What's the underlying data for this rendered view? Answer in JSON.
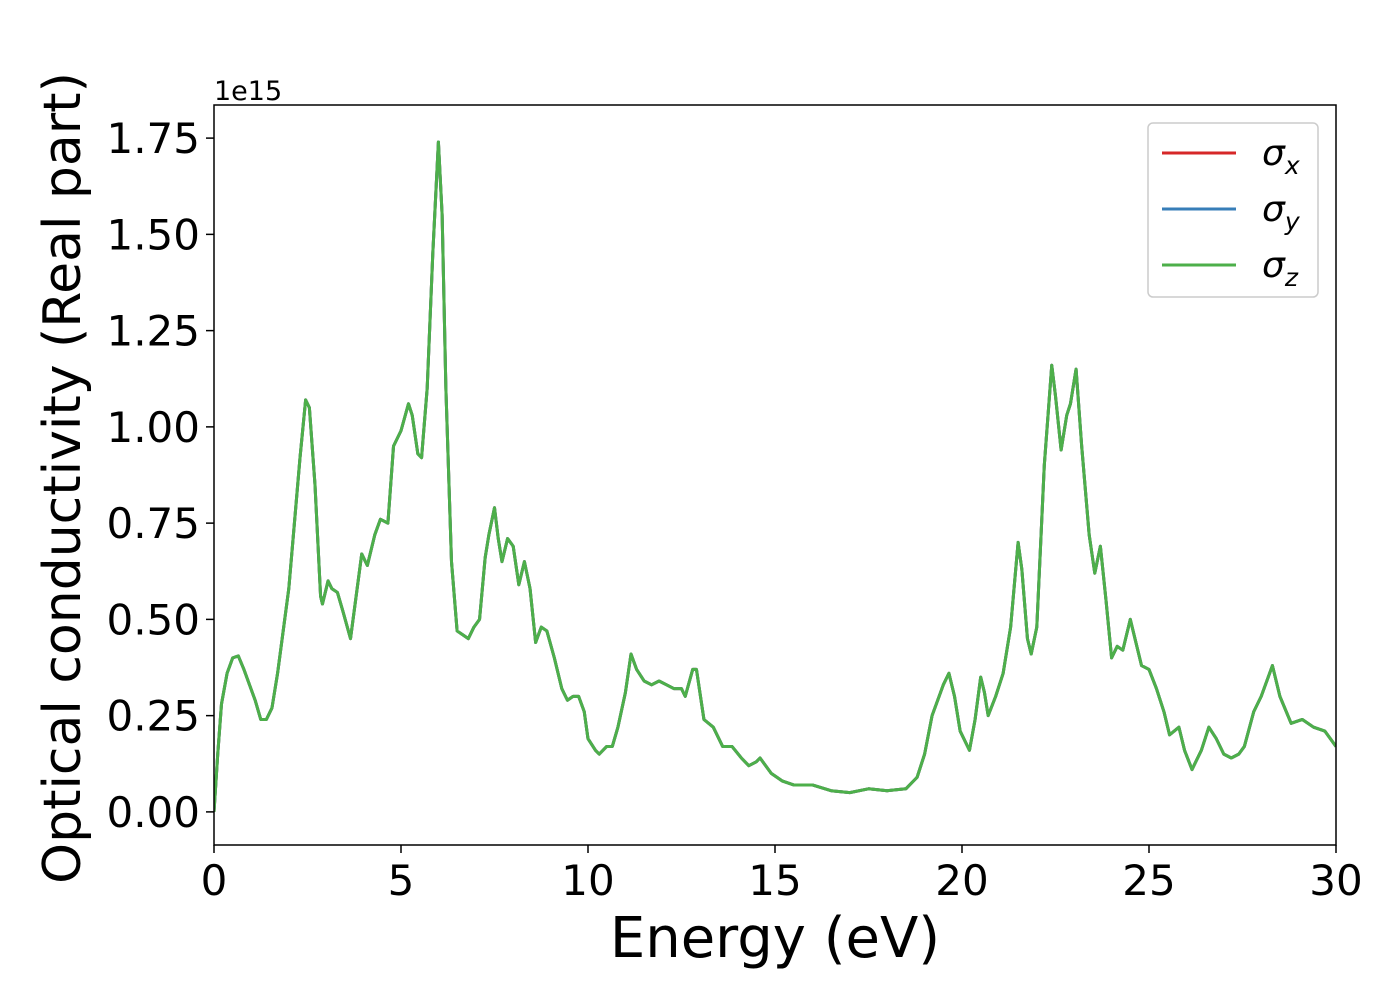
{
  "chart_data": {
    "type": "line",
    "xlabel": "Energy (eV)",
    "ylabel": "Optical conductivity (Real part)",
    "y_offset_label": "1e15",
    "xlim": [
      0,
      30
    ],
    "ylim": [
      -0.086,
      1.836
    ],
    "xticks": [
      0,
      5,
      10,
      15,
      20,
      25,
      30
    ],
    "yticks": [
      {
        "value": 0,
        "label": "0.00"
      },
      0.25,
      {
        "value": 0.5,
        "label": "0.50"
      },
      0.75,
      {
        "value": 1,
        "label": "1.00"
      },
      1.25,
      {
        "value": 1.5,
        "label": "1.50"
      },
      1.75
    ],
    "grid": false,
    "legend": "upper right",
    "x": [
      0,
      0.1,
      0.2,
      0.35,
      0.5,
      0.65,
      0.8,
      0.95,
      1.1,
      1.25,
      1.4,
      1.55,
      1.7,
      1.85,
      2.0,
      2.15,
      2.3,
      2.45,
      2.55,
      2.7,
      2.85,
      2.9,
      3.05,
      3.15,
      3.3,
      3.45,
      3.65,
      3.8,
      3.95,
      4.1,
      4.3,
      4.45,
      4.65,
      4.8,
      5.0,
      5.2,
      5.3,
      5.45,
      5.55,
      5.7,
      5.85,
      6.0,
      6.1,
      6.2,
      6.35,
      6.5,
      6.65,
      6.8,
      6.95,
      7.1,
      7.25,
      7.35,
      7.5,
      7.6,
      7.7,
      7.85,
      8.0,
      8.15,
      8.3,
      8.45,
      8.6,
      8.75,
      8.9,
      9.1,
      9.3,
      9.45,
      9.6,
      9.75,
      9.9,
      10.0,
      10.2,
      10.3,
      10.5,
      10.65,
      10.8,
      11.0,
      11.15,
      11.3,
      11.5,
      11.7,
      11.9,
      12.1,
      12.3,
      12.5,
      12.6,
      12.8,
      12.9,
      13.1,
      13.35,
      13.6,
      13.85,
      14.1,
      14.3,
      14.5,
      14.6,
      14.9,
      15.2,
      15.5,
      16.0,
      16.5,
      17.0,
      17.5,
      18.0,
      18.5,
      18.8,
      19.0,
      19.2,
      19.5,
      19.65,
      19.8,
      19.95,
      20.2,
      20.35,
      20.5,
      20.6,
      20.7,
      20.9,
      21.1,
      21.3,
      21.5,
      21.6,
      21.75,
      21.85,
      22.0,
      22.2,
      22.4,
      22.5,
      22.65,
      22.8,
      22.9,
      23.05,
      23.2,
      23.4,
      23.55,
      23.7,
      23.85,
      24.0,
      24.15,
      24.3,
      24.5,
      24.65,
      24.8,
      25.0,
      25.2,
      25.4,
      25.55,
      25.8,
      25.95,
      26.15,
      26.4,
      26.6,
      26.8,
      27.0,
      27.2,
      27.4,
      27.55,
      27.8,
      28.0,
      28.3,
      28.5,
      28.8,
      29.1,
      29.4,
      29.7,
      30.0
    ],
    "series": [
      {
        "name": "σx",
        "color": "#d62728",
        "values": [
          0,
          0.15,
          0.28,
          0.36,
          0.4,
          0.405,
          0.37,
          0.33,
          0.29,
          0.24,
          0.24,
          0.27,
          0.36,
          0.47,
          0.58,
          0.75,
          0.92,
          1.07,
          1.05,
          0.85,
          0.56,
          0.54,
          0.6,
          0.58,
          0.57,
          0.52,
          0.45,
          0.56,
          0.67,
          0.64,
          0.72,
          0.76,
          0.75,
          0.95,
          0.99,
          1.06,
          1.03,
          0.93,
          0.92,
          1.1,
          1.45,
          1.74,
          1.55,
          1.1,
          0.65,
          0.47,
          0.46,
          0.45,
          0.48,
          0.5,
          0.66,
          0.72,
          0.79,
          0.71,
          0.65,
          0.71,
          0.69,
          0.59,
          0.65,
          0.58,
          0.44,
          0.48,
          0.47,
          0.4,
          0.32,
          0.29,
          0.3,
          0.3,
          0.26,
          0.19,
          0.16,
          0.15,
          0.17,
          0.17,
          0.22,
          0.31,
          0.41,
          0.37,
          0.34,
          0.33,
          0.34,
          0.33,
          0.32,
          0.32,
          0.3,
          0.37,
          0.37,
          0.24,
          0.22,
          0.17,
          0.17,
          0.14,
          0.12,
          0.13,
          0.14,
          0.1,
          0.08,
          0.07,
          0.07,
          0.055,
          0.05,
          0.06,
          0.055,
          0.06,
          0.09,
          0.15,
          0.25,
          0.33,
          0.36,
          0.3,
          0.21,
          0.16,
          0.24,
          0.35,
          0.31,
          0.25,
          0.3,
          0.36,
          0.48,
          0.7,
          0.63,
          0.45,
          0.41,
          0.48,
          0.9,
          1.16,
          1.08,
          0.94,
          1.03,
          1.06,
          1.15,
          0.95,
          0.72,
          0.62,
          0.69,
          0.55,
          0.4,
          0.43,
          0.42,
          0.5,
          0.44,
          0.38,
          0.37,
          0.32,
          0.26,
          0.2,
          0.22,
          0.16,
          0.11,
          0.16,
          0.22,
          0.19,
          0.15,
          0.14,
          0.15,
          0.17,
          0.26,
          0.3,
          0.38,
          0.3,
          0.23,
          0.24,
          0.22,
          0.21,
          0.17
        ]
      },
      {
        "name": "σy",
        "color": "#377eb8",
        "values": [
          0,
          0.15,
          0.28,
          0.36,
          0.4,
          0.405,
          0.37,
          0.33,
          0.29,
          0.24,
          0.24,
          0.27,
          0.36,
          0.47,
          0.58,
          0.75,
          0.92,
          1.07,
          1.05,
          0.85,
          0.56,
          0.54,
          0.6,
          0.58,
          0.57,
          0.52,
          0.45,
          0.56,
          0.67,
          0.64,
          0.72,
          0.76,
          0.75,
          0.95,
          0.99,
          1.06,
          1.03,
          0.93,
          0.92,
          1.1,
          1.45,
          1.74,
          1.55,
          1.1,
          0.65,
          0.47,
          0.46,
          0.45,
          0.48,
          0.5,
          0.66,
          0.72,
          0.79,
          0.71,
          0.65,
          0.71,
          0.69,
          0.59,
          0.65,
          0.58,
          0.44,
          0.48,
          0.47,
          0.4,
          0.32,
          0.29,
          0.3,
          0.3,
          0.26,
          0.19,
          0.16,
          0.15,
          0.17,
          0.17,
          0.22,
          0.31,
          0.41,
          0.37,
          0.34,
          0.33,
          0.34,
          0.33,
          0.32,
          0.32,
          0.3,
          0.37,
          0.37,
          0.24,
          0.22,
          0.17,
          0.17,
          0.14,
          0.12,
          0.13,
          0.14,
          0.1,
          0.08,
          0.07,
          0.07,
          0.055,
          0.05,
          0.06,
          0.055,
          0.06,
          0.09,
          0.15,
          0.25,
          0.33,
          0.36,
          0.3,
          0.21,
          0.16,
          0.24,
          0.35,
          0.31,
          0.25,
          0.3,
          0.36,
          0.48,
          0.7,
          0.63,
          0.45,
          0.41,
          0.48,
          0.9,
          1.16,
          1.08,
          0.94,
          1.03,
          1.06,
          1.15,
          0.95,
          0.72,
          0.62,
          0.69,
          0.55,
          0.4,
          0.43,
          0.42,
          0.5,
          0.44,
          0.38,
          0.37,
          0.32,
          0.26,
          0.2,
          0.22,
          0.16,
          0.11,
          0.16,
          0.22,
          0.19,
          0.15,
          0.14,
          0.15,
          0.17,
          0.26,
          0.3,
          0.38,
          0.3,
          0.23,
          0.24,
          0.22,
          0.21,
          0.17
        ]
      },
      {
        "name": "σz",
        "color": "#4daf4a",
        "values": [
          0,
          0.15,
          0.28,
          0.36,
          0.4,
          0.405,
          0.37,
          0.33,
          0.29,
          0.24,
          0.24,
          0.27,
          0.36,
          0.47,
          0.58,
          0.75,
          0.92,
          1.07,
          1.05,
          0.85,
          0.56,
          0.54,
          0.6,
          0.58,
          0.57,
          0.52,
          0.45,
          0.56,
          0.67,
          0.64,
          0.72,
          0.76,
          0.75,
          0.95,
          0.99,
          1.06,
          1.03,
          0.93,
          0.92,
          1.1,
          1.45,
          1.74,
          1.55,
          1.1,
          0.65,
          0.47,
          0.46,
          0.45,
          0.48,
          0.5,
          0.66,
          0.72,
          0.79,
          0.71,
          0.65,
          0.71,
          0.69,
          0.59,
          0.65,
          0.58,
          0.44,
          0.48,
          0.47,
          0.4,
          0.32,
          0.29,
          0.3,
          0.3,
          0.26,
          0.19,
          0.16,
          0.15,
          0.17,
          0.17,
          0.22,
          0.31,
          0.41,
          0.37,
          0.34,
          0.33,
          0.34,
          0.33,
          0.32,
          0.32,
          0.3,
          0.37,
          0.37,
          0.24,
          0.22,
          0.17,
          0.17,
          0.14,
          0.12,
          0.13,
          0.14,
          0.1,
          0.08,
          0.07,
          0.07,
          0.055,
          0.05,
          0.06,
          0.055,
          0.06,
          0.09,
          0.15,
          0.25,
          0.33,
          0.36,
          0.3,
          0.21,
          0.16,
          0.24,
          0.35,
          0.31,
          0.25,
          0.3,
          0.36,
          0.48,
          0.7,
          0.63,
          0.45,
          0.41,
          0.48,
          0.9,
          1.16,
          1.08,
          0.94,
          1.03,
          1.06,
          1.15,
          0.95,
          0.72,
          0.62,
          0.69,
          0.55,
          0.4,
          0.43,
          0.42,
          0.5,
          0.44,
          0.38,
          0.37,
          0.32,
          0.26,
          0.2,
          0.22,
          0.16,
          0.11,
          0.16,
          0.22,
          0.19,
          0.15,
          0.14,
          0.15,
          0.17,
          0.26,
          0.3,
          0.38,
          0.3,
          0.23,
          0.24,
          0.22,
          0.21,
          0.17
        ]
      }
    ]
  }
}
